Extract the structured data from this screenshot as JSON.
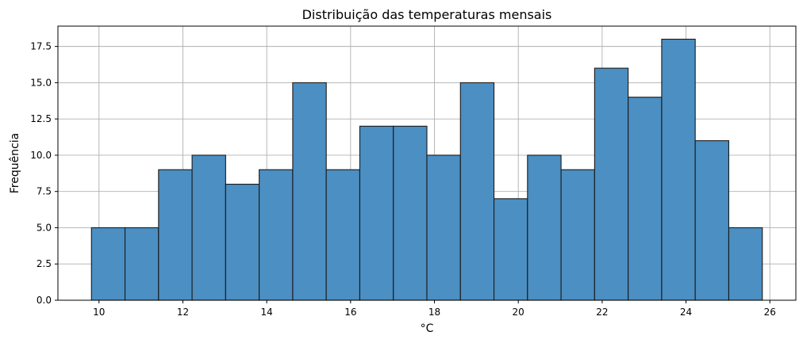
{
  "chart_data": {
    "type": "bar",
    "title": "Distribuição das temperaturas mensais",
    "xlabel": "°C",
    "ylabel": "Frequência",
    "bin_edges": [
      9.82,
      10.62,
      11.42,
      12.22,
      13.02,
      13.82,
      14.62,
      15.42,
      16.22,
      17.02,
      17.82,
      18.62,
      19.42,
      20.22,
      21.02,
      21.82,
      22.62,
      23.42,
      24.22,
      25.02,
      25.82
    ],
    "values": [
      5,
      5,
      9,
      10,
      8,
      9,
      15,
      9,
      12,
      12,
      10,
      15,
      7,
      10,
      9,
      16,
      14,
      18,
      11,
      5
    ],
    "xlim": [
      9.02,
      26.62
    ],
    "ylim": [
      0,
      18.9
    ],
    "xticks": [
      10,
      12,
      14,
      16,
      18,
      20,
      22,
      24,
      26
    ],
    "xtick_labels": [
      "10",
      "12",
      "14",
      "16",
      "18",
      "20",
      "22",
      "24",
      "26"
    ],
    "yticks": [
      0,
      2.5,
      5,
      7.5,
      10,
      12.5,
      15,
      17.5
    ],
    "ytick_labels": [
      "0.0",
      "2.5",
      "5.0",
      "7.5",
      "10.0",
      "12.5",
      "15.0",
      "17.5"
    ],
    "grid": true,
    "bar_color": "#4b8fc3",
    "edge_color": "#1a1a1a"
  }
}
